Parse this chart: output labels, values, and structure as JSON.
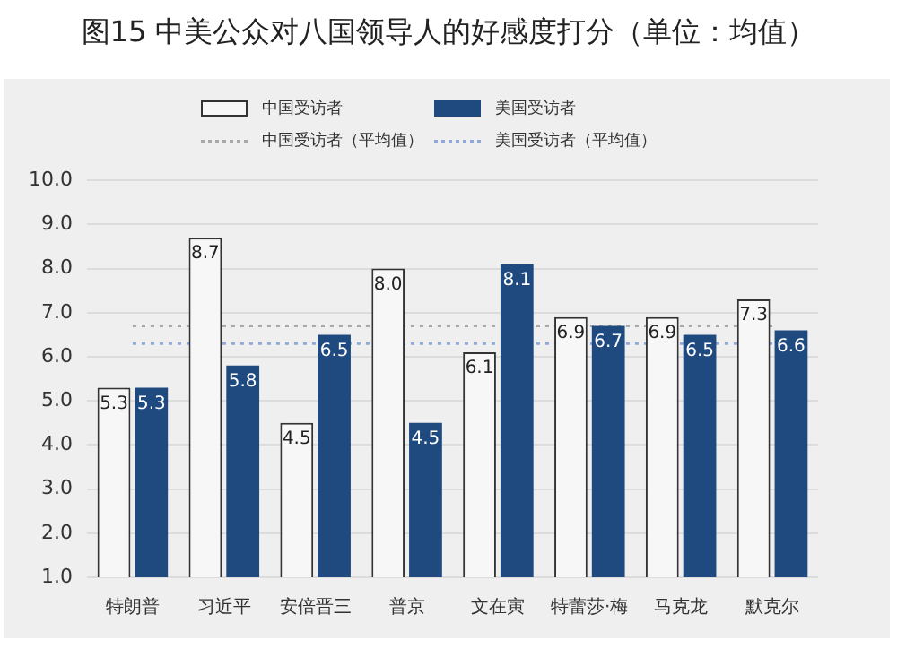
{
  "chart_data": {
    "type": "bar",
    "title": "图15  中美公众对八国领导人的好感度打分（单位：均值）",
    "categories": [
      "特朗普",
      "习近平",
      "安倍晋三",
      "普京",
      "文在寅",
      "特蕾莎·梅",
      "马克龙",
      "默克尔"
    ],
    "series": [
      {
        "name": "中国受访者",
        "color": "#f7f7f7",
        "values": [
          5.3,
          8.7,
          4.5,
          8.0,
          6.1,
          6.9,
          6.9,
          7.3
        ],
        "value_labels": [
          "5.3",
          "8.7",
          "4.5",
          "8.0",
          "6.1",
          "6.9",
          "6.9",
          "7.3"
        ]
      },
      {
        "name": "美国受访者",
        "color": "#1f4a80",
        "values": [
          5.3,
          5.8,
          6.5,
          4.5,
          8.1,
          6.7,
          6.5,
          6.6
        ],
        "value_labels": [
          "5.3",
          "5.8",
          "6.5",
          "4.5",
          "8.1",
          "6.7",
          "6.5",
          "6.6"
        ]
      },
      {
        "name": "中国受访者（平均值）",
        "type": "line",
        "color": "#a8a8a8",
        "line_style": "dotted",
        "marker": "none",
        "values": [
          6.7,
          6.7,
          6.7,
          6.7,
          6.7,
          6.7,
          6.7,
          6.7
        ]
      },
      {
        "name": "美国受访者（平均值）",
        "type": "line",
        "color": "#8fa8d8",
        "line_style": "dotted",
        "marker": "none",
        "values": [
          6.3,
          6.3,
          6.3,
          6.3,
          6.3,
          6.3,
          6.3,
          6.3
        ]
      }
    ],
    "ylim": [
      1,
      10
    ],
    "yticks": [
      {
        "value": 1,
        "label": "1.0"
      },
      {
        "value": 2,
        "label": "2.0"
      },
      {
        "value": 3,
        "label": "3.0"
      },
      {
        "value": 4,
        "label": "4.0"
      },
      {
        "value": 5,
        "label": "5.0"
      },
      {
        "value": 6,
        "label": "6.0"
      },
      {
        "value": 7,
        "label": "7.0"
      },
      {
        "value": 8,
        "label": "8.0"
      },
      {
        "value": 9,
        "label": "9.0"
      },
      {
        "value": 10,
        "label": "10.0"
      }
    ],
    "grid": "y",
    "legend": "top"
  }
}
